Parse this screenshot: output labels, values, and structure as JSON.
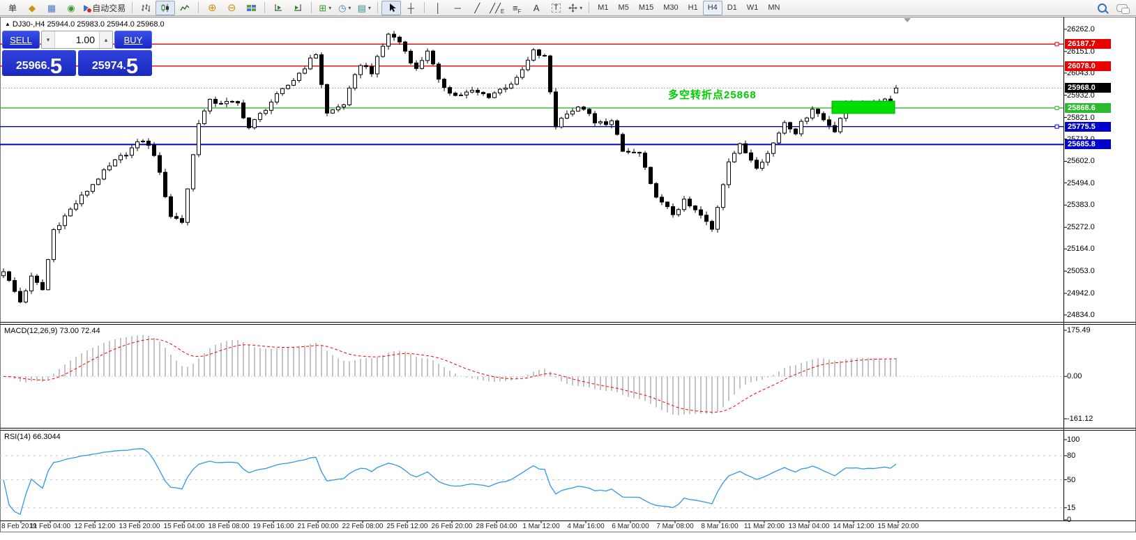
{
  "toolbar": {
    "left_text": "单",
    "autotrade_label": "自动交易",
    "timeframes": [
      "M1",
      "M5",
      "M15",
      "M30",
      "H1",
      "H4",
      "D1",
      "W1",
      "MN"
    ],
    "active_timeframe": "H4",
    "glyphs": {
      "order_tag": "◆",
      "chart_window": "▦",
      "signal": "◉",
      "zoom_in": "⊕",
      "zoom_out": "⊖",
      "indicators": "⊞",
      "clock": "◷",
      "template": "▤",
      "crosshair": "┼",
      "vline": "│",
      "hline": "─",
      "trendline": "╱",
      "channel": "╱╱",
      "channel_sub": "E",
      "fibo": "≡",
      "fibo_sub": "F",
      "text_tool": "A",
      "label_tool": "T",
      "dropdown": "▾",
      "spinner_down": "▾",
      "spinner_up": "▴"
    }
  },
  "chart": {
    "title_marker": "▲",
    "title": "DJ30-,H4 25944.0 25983.0 25944.0 25968.0",
    "symbol": "DJ30-",
    "period": "H4",
    "annotation": "多空转折点25868",
    "colors": {
      "line_red": "#e60000",
      "line_green": "#2eb82e",
      "line_blue": "#0000cc",
      "current_label": "#000000",
      "zone_green": "#00dd00",
      "annotation_green": "#00cc00",
      "rsi_line": "#2f96e8",
      "macd_signal": "#ff0000",
      "macd_hist": "#c4c4c4"
    }
  },
  "trade_panel": {
    "sell_label": "SELL",
    "buy_label": "BUY",
    "volume": "1.00",
    "sell_price": {
      "base": "25966.",
      "pip": "5"
    },
    "buy_price": {
      "base": "25974.",
      "pip": "5"
    }
  },
  "price_axis": {
    "ticks": [
      {
        "label": "26262.0",
        "value": 26262.0
      },
      {
        "label": "26151.0",
        "value": 26151.0
      },
      {
        "label": "26043.0",
        "value": 26043.0
      },
      {
        "label": "25932.0",
        "value": 25932.0
      },
      {
        "label": "25821.0",
        "value": 25821.0
      },
      {
        "label": "25713.0",
        "value": 25713.0
      },
      {
        "label": "25602.0",
        "value": 25602.0
      },
      {
        "label": "25494.0",
        "value": 25494.0
      },
      {
        "label": "25383.0",
        "value": 25383.0
      },
      {
        "label": "25272.0",
        "value": 25272.0
      },
      {
        "label": "25164.0",
        "value": 25164.0
      },
      {
        "label": "25053.0",
        "value": 25053.0
      },
      {
        "label": "24942.0",
        "value": 24942.0
      },
      {
        "label": "24834.0",
        "value": 24834.0
      }
    ],
    "levels": [
      {
        "label": "26187.7",
        "value": 26187.7,
        "color": "#e60000",
        "marker": true
      },
      {
        "label": "26078.0",
        "value": 26078.0,
        "color": "#e60000",
        "marker": false
      },
      {
        "label": "25868.6",
        "value": 25868.6,
        "color": "#2eb82e",
        "marker": true
      },
      {
        "label": "25775.5",
        "value": 25775.5,
        "color": "#0000cc",
        "marker": true
      },
      {
        "label": "25685.8",
        "value": 25685.8,
        "color": "#0000cc",
        "marker": false
      }
    ],
    "current": {
      "label": "25968.0",
      "value": 25968.0,
      "color": "#000000"
    }
  },
  "macd": {
    "label": "MACD(12,26,9) 73.00 72.44",
    "fast": 12,
    "slow": 26,
    "signal_period": 9,
    "value": 73.0,
    "signal_value": 72.44,
    "axis": [
      {
        "label": "175.49",
        "value": 175.49
      },
      {
        "label": "0.00",
        "value": 0
      },
      {
        "label": "-161.12",
        "value": -161.12
      }
    ]
  },
  "rsi": {
    "label": "RSI(14) 66.3044",
    "period": 14,
    "value": 66.3044,
    "axis": [
      {
        "label": "100",
        "value": 100
      },
      {
        "label": "80",
        "value": 80
      },
      {
        "label": "50",
        "value": 50
      },
      {
        "label": "15",
        "value": 15
      },
      {
        "label": "0",
        "value": 0
      }
    ],
    "dashed_levels": [
      80,
      50,
      15
    ]
  },
  "time_axis": [
    "8 Feb 2019",
    "11 Feb 04:00",
    "12 Feb 12:00",
    "13 Feb 20:00",
    "15 Feb 04:00",
    "18 Feb 08:00",
    "19 Feb 16:00",
    "21 Feb 00:00",
    "22 Feb 08:00",
    "25 Feb 12:00",
    "26 Feb 20:00",
    "28 Feb 04:00",
    "1 Mar 12:00",
    "4 Mar 16:00",
    "6 Mar 00:00",
    "7 Mar 08:00",
    "8 Mar 16:00",
    "11 Mar 20:00",
    "13 Mar 04:00",
    "14 Mar 12:00",
    "15 Mar 20:00"
  ],
  "chart_data": {
    "type": "candlestick",
    "symbol": "DJ30-",
    "timeframe": "H4",
    "ylim": [
      24834.0,
      26262.0
    ],
    "num_candles": 161,
    "ohlc_last": {
      "open": 25944.0,
      "high": 25983.0,
      "low": 25944.0,
      "close": 25968.0
    },
    "close_waypoints": [
      [
        0,
        25050
      ],
      [
        3,
        24900
      ],
      [
        5,
        25020
      ],
      [
        7,
        24960
      ],
      [
        9,
        25260
      ],
      [
        12,
        25360
      ],
      [
        17,
        25520
      ],
      [
        20,
        25600
      ],
      [
        25,
        25710
      ],
      [
        27,
        25640
      ],
      [
        30,
        25330
      ],
      [
        32,
        25300
      ],
      [
        35,
        25800
      ],
      [
        37,
        25900
      ],
      [
        42,
        25890
      ],
      [
        44,
        25770
      ],
      [
        48,
        25900
      ],
      [
        52,
        26010
      ],
      [
        56,
        26140
      ],
      [
        58,
        25840
      ],
      [
        61,
        25890
      ],
      [
        64,
        26090
      ],
      [
        66,
        26050
      ],
      [
        69,
        26240
      ],
      [
        71,
        26200
      ],
      [
        74,
        26060
      ],
      [
        76,
        26160
      ],
      [
        78,
        26000
      ],
      [
        81,
        25930
      ],
      [
        84,
        25950
      ],
      [
        87,
        25930
      ],
      [
        89,
        25960
      ],
      [
        92,
        26010
      ],
      [
        95,
        26150
      ],
      [
        97,
        26120
      ],
      [
        99,
        25780
      ],
      [
        101,
        25850
      ],
      [
        104,
        25870
      ],
      [
        106,
        25790
      ],
      [
        109,
        25800
      ],
      [
        111,
        25650
      ],
      [
        114,
        25640
      ],
      [
        116,
        25480
      ],
      [
        118,
        25390
      ],
      [
        120,
        25340
      ],
      [
        122,
        25400
      ],
      [
        125,
        25330
      ],
      [
        127,
        25260
      ],
      [
        130,
        25610
      ],
      [
        132,
        25680
      ],
      [
        135,
        25580
      ],
      [
        137,
        25640
      ],
      [
        140,
        25800
      ],
      [
        142,
        25750
      ],
      [
        145,
        25870
      ],
      [
        147,
        25810
      ],
      [
        149,
        25760
      ],
      [
        151,
        25880
      ],
      [
        153,
        25900
      ],
      [
        155,
        25880
      ],
      [
        157,
        25910
      ],
      [
        159,
        25915
      ],
      [
        160,
        25968
      ]
    ],
    "horizontal_levels": [
      26187.7,
      26078.0,
      25868.6,
      25775.5,
      25685.8
    ],
    "current_price": 25968.0,
    "green_zone": {
      "index_from": 149,
      "index_to": 160,
      "price_top": 25903,
      "price_bottom": 25841
    },
    "annotation": {
      "text": "多空转折点25868",
      "price": 25950
    }
  }
}
